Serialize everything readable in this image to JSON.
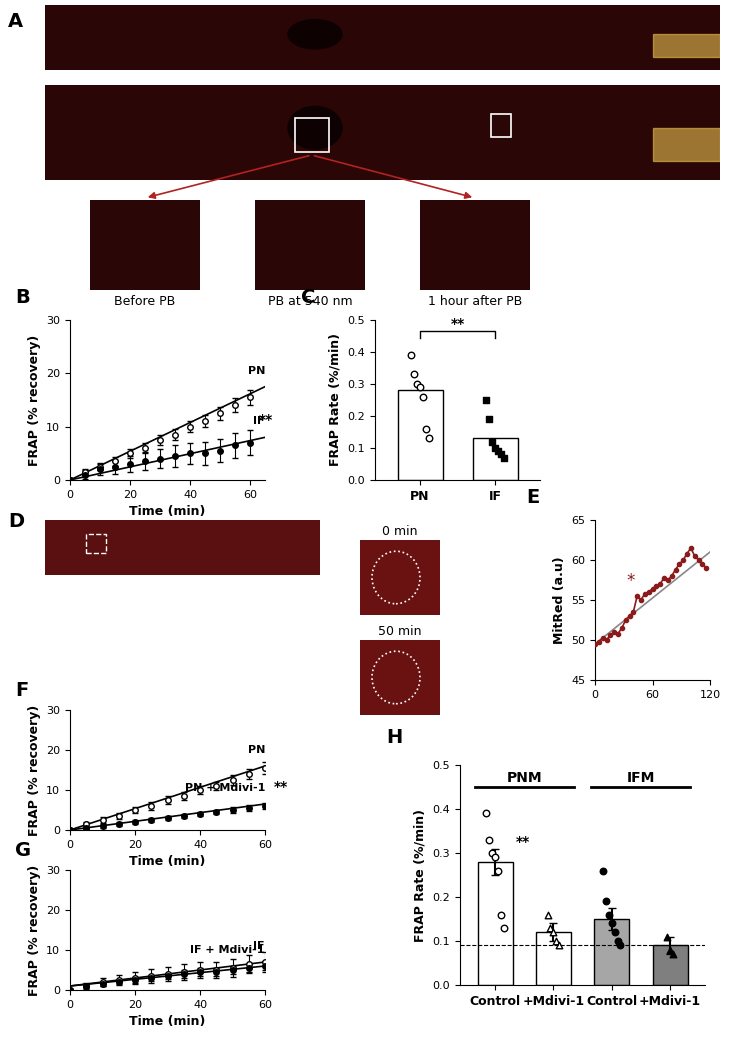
{
  "panels": [
    {
      "label": "A",
      "type": "image",
      "insets": [
        "Before PB",
        "PB at 540 nm",
        "1 hour after PB"
      ]
    },
    {
      "label": "D",
      "type": "image",
      "insets": [
        "0 min",
        "50 min"
      ]
    }
  ],
  "chart_data": [
    {
      "panel": "B",
      "type": "line",
      "xlabel": "Time (min)",
      "ylabel": "FRAP (% recovery)",
      "xlim": [
        0,
        65
      ],
      "xticks": [
        0,
        20,
        40,
        60
      ],
      "ylim": [
        0,
        30
      ],
      "yticks": [
        0,
        10,
        20,
        30
      ],
      "significance": "**",
      "x": [
        0,
        5,
        10,
        15,
        20,
        25,
        30,
        35,
        40,
        45,
        50,
        55,
        60
      ],
      "series": [
        {
          "name": "PN",
          "color": "#000000",
          "marker": "open_circle",
          "values": [
            0,
            1.5,
            2.5,
            3.5,
            5,
            6,
            7.5,
            8.5,
            10,
            11,
            12.5,
            14,
            15.5
          ],
          "errors": [
            0.3,
            0.6,
            0.7,
            0.8,
            0.8,
            0.9,
            1.0,
            1.0,
            1.0,
            1.1,
            1.2,
            1.3,
            1.4
          ],
          "fit_x": [
            0,
            65
          ],
          "fit_y": [
            0,
            17.5
          ]
        },
        {
          "name": "IF",
          "color": "#000000",
          "marker": "circle",
          "values": [
            0,
            1,
            2,
            2.5,
            3,
            3.5,
            4,
            4.5,
            5,
            5,
            5.5,
            6.5,
            7
          ],
          "errors": [
            0.3,
            0.8,
            1.0,
            1.3,
            1.5,
            1.7,
            1.8,
            2.0,
            2.0,
            2.1,
            2.2,
            2.3,
            2.4
          ],
          "fit_x": [
            0,
            65
          ],
          "fit_y": [
            0,
            8
          ]
        }
      ]
    },
    {
      "panel": "C",
      "type": "bar",
      "ylabel": "FRAP Rate (%/min)",
      "categories": [
        "PN",
        "IF"
      ],
      "values": [
        0.28,
        0.13
      ],
      "colors": [
        "#ffffff",
        "#ffffff"
      ],
      "points": [
        [
          0.39,
          0.33,
          0.3,
          0.29,
          0.26,
          0.16,
          0.13
        ],
        [
          0.25,
          0.19,
          0.12,
          0.1,
          0.09,
          0.08,
          0.07
        ]
      ],
      "ylim": [
        0,
        0.5
      ],
      "yticks": [
        0.0,
        0.1,
        0.2,
        0.3,
        0.4,
        0.5
      ],
      "significance": "**"
    },
    {
      "panel": "E",
      "type": "line",
      "ylabel": "MitRed (a.u)",
      "xlim": [
        0,
        120
      ],
      "xticks": [
        0,
        60,
        120
      ],
      "ylim": [
        45,
        65
      ],
      "yticks": [
        45,
        50,
        55,
        60,
        65
      ],
      "x": [
        0,
        4,
        8,
        12,
        16,
        20,
        24,
        28,
        32,
        36,
        40,
        44,
        48,
        52,
        56,
        60,
        64,
        68,
        72,
        76,
        80,
        84,
        88,
        92,
        96,
        100,
        104,
        108,
        112,
        116
      ],
      "series": [
        {
          "name": "MitRed",
          "color": "#8b1a1a",
          "marker": "circle",
          "values": [
            49.5,
            49.8,
            50.2,
            50.0,
            50.6,
            51.0,
            50.8,
            51.5,
            52.5,
            53.0,
            53.5,
            55.5,
            55.0,
            55.8,
            56.0,
            56.4,
            56.8,
            57.0,
            57.8,
            57.5,
            58.0,
            58.8,
            59.5,
            60.0,
            60.8,
            61.5,
            60.5,
            60.0,
            59.5,
            59.0
          ],
          "fit_x": [
            0,
            120
          ],
          "fit_y": [
            49.5,
            61
          ]
        }
      ],
      "annotation": {
        "text": "*",
        "x": 44,
        "y": 55.5
      }
    },
    {
      "panel": "F",
      "type": "line",
      "xlabel": "Time (min)",
      "ylabel": "FRAP (% recovery)",
      "xlim": [
        0,
        60
      ],
      "xticks": [
        0,
        20,
        40,
        60
      ],
      "ylim": [
        0,
        30
      ],
      "yticks": [
        0,
        10,
        20,
        30
      ],
      "significance": "**",
      "x": [
        0,
        5,
        10,
        15,
        20,
        25,
        30,
        35,
        40,
        45,
        50,
        55,
        60
      ],
      "series": [
        {
          "name": "PN",
          "color": "#000000",
          "marker": "open_circle",
          "values": [
            0,
            1.5,
            2.5,
            3.5,
            5,
            6,
            7.5,
            8.5,
            10,
            11,
            12.5,
            14,
            15.5
          ],
          "errors": [
            0.3,
            0.6,
            0.7,
            0.8,
            0.8,
            0.9,
            1.0,
            1.0,
            1.0,
            1.1,
            1.2,
            1.3,
            1.4
          ],
          "fit_x": [
            0,
            60
          ],
          "fit_y": [
            0,
            16
          ]
        },
        {
          "name": "PN + Mdivi-1",
          "color": "#000000",
          "marker": "circle",
          "values": [
            0,
            0.5,
            1,
            1.5,
            2,
            2.5,
            3,
            3.5,
            4,
            4.5,
            5,
            5.5,
            6
          ],
          "errors": [
            0.2,
            0.3,
            0.4,
            0.4,
            0.5,
            0.5,
            0.5,
            0.6,
            0.6,
            0.6,
            0.7,
            0.7,
            0.7
          ],
          "fit_x": [
            0,
            60
          ],
          "fit_y": [
            0,
            6.5
          ]
        }
      ]
    },
    {
      "panel": "G",
      "type": "line",
      "xlabel": "Time (min)",
      "ylabel": "FRAP (% recovery)",
      "xlim": [
        0,
        60
      ],
      "xticks": [
        0,
        20,
        40,
        60
      ],
      "ylim": [
        0,
        30
      ],
      "yticks": [
        0,
        10,
        20,
        30
      ],
      "x": [
        0,
        5,
        10,
        15,
        20,
        25,
        30,
        35,
        40,
        45,
        50,
        55,
        60
      ],
      "series": [
        {
          "name": "IF",
          "color": "#000000",
          "marker": "open_circle",
          "values": [
            0,
            1,
            2,
            2.5,
            3,
            3.5,
            4,
            4.5,
            5,
            5,
            5.5,
            6.5,
            7
          ],
          "errors": [
            0.3,
            0.8,
            1.0,
            1.3,
            1.5,
            1.7,
            1.8,
            2.0,
            2.0,
            2.1,
            2.2,
            2.3,
            2.4
          ],
          "fit_x": [
            0,
            60
          ],
          "fit_y": [
            1,
            7
          ]
        },
        {
          "name": "IF + Mdivi-1",
          "color": "#000000",
          "marker": "circle",
          "values": [
            0,
            1,
            1.5,
            2,
            2.5,
            3,
            3.5,
            4,
            4.5,
            4.5,
            5,
            5.5,
            6
          ],
          "errors": [
            0.2,
            0.4,
            0.5,
            0.6,
            0.7,
            0.8,
            0.8,
            0.9,
            0.9,
            1.0,
            1.0,
            1.0,
            1.1
          ],
          "fit_x": [
            0,
            60
          ],
          "fit_y": [
            1,
            6
          ]
        }
      ]
    },
    {
      "panel": "H",
      "type": "bar",
      "ylabel": "FRAP Rate (%/min)",
      "categories": [
        "Control",
        "+Mdivi-1",
        "Control",
        "+Mdivi-1"
      ],
      "values": [
        0.28,
        0.12,
        0.15,
        0.09
      ],
      "errors": [
        0.03,
        0.02,
        0.025,
        0.02
      ],
      "colors": [
        "#ffffff",
        "#ffffff",
        "#a6a6a6",
        "#7f7f7f"
      ],
      "points": [
        [
          0.39,
          0.33,
          0.3,
          0.29,
          0.26,
          0.16,
          0.13
        ],
        [
          0.16,
          0.13,
          0.12,
          0.1,
          0.09
        ],
        [
          0.26,
          0.19,
          0.16,
          0.14,
          0.12,
          0.1,
          0.09
        ],
        [
          0.11,
          0.08,
          0.07
        ]
      ],
      "groups": [
        {
          "name": "PNM",
          "members": [
            0,
            1
          ]
        },
        {
          "name": "IFM",
          "members": [
            2,
            3
          ]
        }
      ],
      "reference_line": 0.09,
      "ylim": [
        0,
        0.5
      ],
      "yticks": [
        0.0,
        0.1,
        0.2,
        0.3,
        0.4,
        0.5
      ],
      "significance": "**"
    }
  ]
}
